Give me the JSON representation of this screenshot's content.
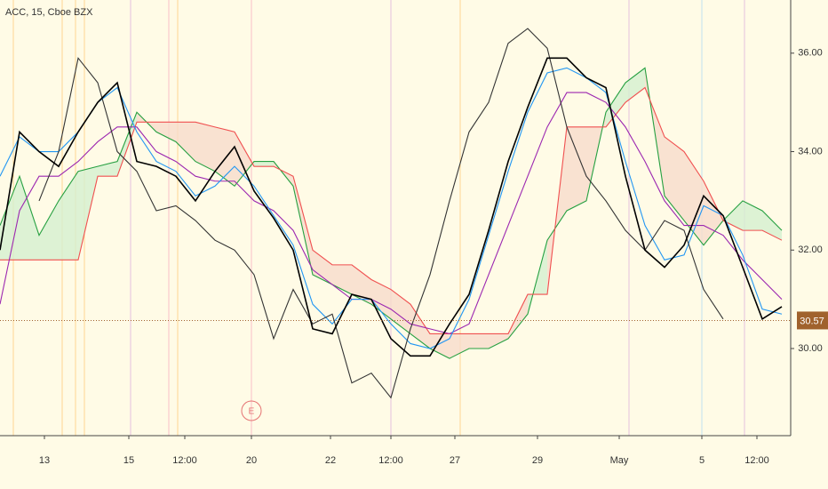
{
  "chart_data": {
    "type": "line",
    "title": "ACC, 15, Cboe BZX",
    "x": [
      0,
      22,
      44,
      66,
      88,
      110,
      132,
      154,
      176,
      198,
      220,
      242,
      264,
      286,
      308,
      330,
      352,
      374,
      396,
      418,
      440,
      462,
      484,
      506,
      528,
      550,
      572,
      594,
      616,
      638,
      660,
      682,
      704,
      726,
      748,
      770,
      792,
      814,
      836,
      858,
      880
    ],
    "xlim": [
      0,
      890
    ],
    "xticks": [
      {
        "value": 50,
        "label": "13"
      },
      {
        "value": 145,
        "label": "15"
      },
      {
        "value": 208,
        "label": "12:00"
      },
      {
        "value": 283,
        "label": "20"
      },
      {
        "value": 372,
        "label": "22"
      },
      {
        "value": 440,
        "label": "12:00"
      },
      {
        "value": 512,
        "label": "27"
      },
      {
        "value": 605,
        "label": "29"
      },
      {
        "value": 697,
        "label": "May"
      },
      {
        "value": 790,
        "label": "5"
      },
      {
        "value": 852,
        "label": "12:00"
      }
    ],
    "ylim": [
      28.23,
      37.08
    ],
    "yticks": [
      {
        "value": 30,
        "label": "30.00"
      },
      {
        "value": 32,
        "label": "32.00"
      },
      {
        "value": 34,
        "label": "34.00"
      },
      {
        "value": 36,
        "label": "36.00"
      }
    ],
    "series": [
      {
        "color": "#26a041",
        "fill_above": "#d5f0d0",
        "values": [
          32.5,
          33.5,
          32.3,
          33.0,
          33.6,
          33.7,
          33.8,
          34.8,
          34.4,
          34.2,
          33.8,
          33.6,
          33.3,
          33.8,
          33.8,
          33.3,
          31.5,
          31.3,
          31.1,
          30.9,
          30.6,
          30.3,
          30.0,
          29.8,
          30.0,
          30.0,
          30.2,
          30.7,
          32.2,
          32.8,
          33.0,
          34.8,
          35.4,
          35.7,
          33.1,
          32.6,
          32.1,
          32.6,
          33.0,
          32.8,
          32.4
        ]
      },
      {
        "color": "#f05050",
        "fill_above": "#f8dccc",
        "values": [
          31.8,
          31.8,
          31.8,
          31.8,
          31.8,
          33.5,
          33.5,
          34.6,
          34.6,
          34.6,
          34.6,
          34.5,
          34.4,
          33.7,
          33.7,
          33.5,
          32.0,
          31.7,
          31.7,
          31.4,
          31.2,
          30.9,
          30.3,
          30.3,
          30.3,
          30.3,
          30.3,
          31.1,
          31.1,
          34.5,
          34.5,
          34.5,
          35.0,
          35.3,
          34.3,
          34.0,
          33.4,
          32.6,
          32.4,
          32.4,
          32.2
        ]
      },
      {
        "color": "#9c27b0",
        "values": [
          30.9,
          32.8,
          33.5,
          33.5,
          33.8,
          34.2,
          34.5,
          34.5,
          34.0,
          33.8,
          33.5,
          33.4,
          33.4,
          33.0,
          32.8,
          32.4,
          31.6,
          31.3,
          31.0,
          31.0,
          30.8,
          30.5,
          30.4,
          30.3,
          30.5,
          31.5,
          32.5,
          33.5,
          34.5,
          35.2,
          35.2,
          35.0,
          34.5,
          33.8,
          33.0,
          32.5,
          32.5,
          32.3,
          31.8,
          31.4,
          31.0
        ]
      },
      {
        "color": "#2196f3",
        "values": [
          33.5,
          34.3,
          34.0,
          34.0,
          34.4,
          35.0,
          35.3,
          34.4,
          33.8,
          33.6,
          33.1,
          33.3,
          33.7,
          33.3,
          32.7,
          32.1,
          30.9,
          30.5,
          31.0,
          31.0,
          30.5,
          30.1,
          30.0,
          30.2,
          31.0,
          32.3,
          33.6,
          34.8,
          35.6,
          35.7,
          35.5,
          35.2,
          33.8,
          32.5,
          31.8,
          31.9,
          32.9,
          32.7,
          31.9,
          30.8,
          30.7
        ]
      },
      {
        "color": "#333333",
        "values": [
          null,
          null,
          33.0,
          34.0,
          35.9,
          35.4,
          34.0,
          33.6,
          32.8,
          32.9,
          32.6,
          32.2,
          32.0,
          31.5,
          30.2,
          31.2,
          30.5,
          30.7,
          29.3,
          29.5,
          29.0,
          30.4,
          31.5,
          33.0,
          34.4,
          35.0,
          36.2,
          36.5,
          36.1,
          34.5,
          33.5,
          33.0,
          32.4,
          32.0,
          32.6,
          32.4,
          31.2,
          30.6,
          null,
          null,
          null
        ]
      },
      {
        "color": "#000000",
        "values": [
          32.0,
          34.4,
          34.0,
          33.7,
          34.4,
          35.0,
          35.4,
          33.8,
          33.7,
          33.5,
          33.0,
          33.6,
          34.1,
          33.2,
          32.65,
          32.0,
          30.4,
          30.3,
          31.1,
          31.0,
          30.2,
          29.85,
          29.85,
          30.5,
          31.1,
          32.4,
          33.8,
          34.9,
          35.9,
          35.9,
          35.5,
          35.3,
          33.5,
          32.0,
          31.65,
          32.1,
          33.1,
          32.7,
          31.65,
          30.6,
          30.85
        ]
      }
    ],
    "last_price": 30.57,
    "last_price_color": "#a0622d",
    "annotation": {
      "text": "E",
      "x": 283
    }
  }
}
